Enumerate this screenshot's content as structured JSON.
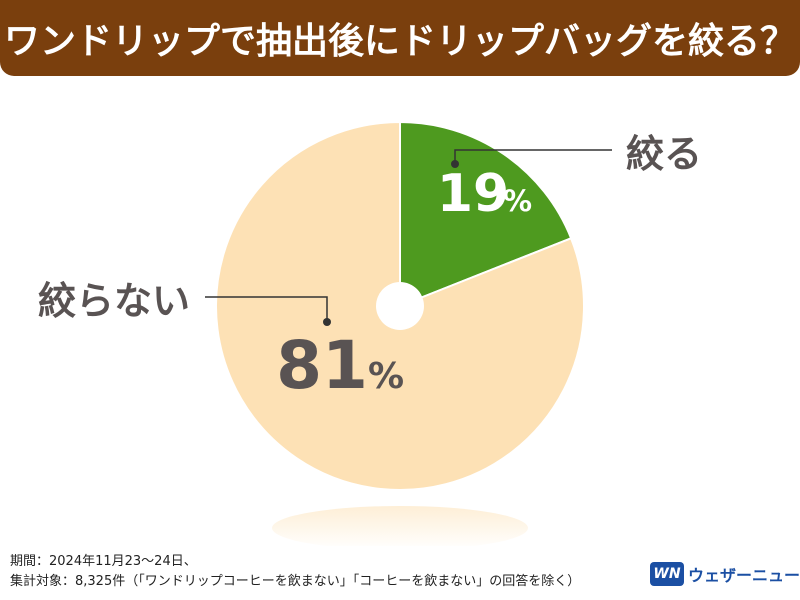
{
  "title": "ワンドリップで抽出後にドリップバッグを絞る？",
  "chart_data": {
    "type": "pie",
    "slices": [
      {
        "label": "絞る",
        "value": 19,
        "display": "19",
        "unit": "%",
        "color": "#4e9a1f"
      },
      {
        "label": "絞らない",
        "value": 81,
        "display": "81",
        "unit": "%",
        "color": "#fde1b5"
      }
    ]
  },
  "footer": {
    "line1": "期間：2024年11月23〜24日、",
    "line2": "集計対象：8,325件（「ワンドリップコーヒーを飲まない」「コーヒーを飲まない」の回答を除く）"
  },
  "brand": {
    "logo": "WN",
    "name": "ウェザーニュース"
  }
}
